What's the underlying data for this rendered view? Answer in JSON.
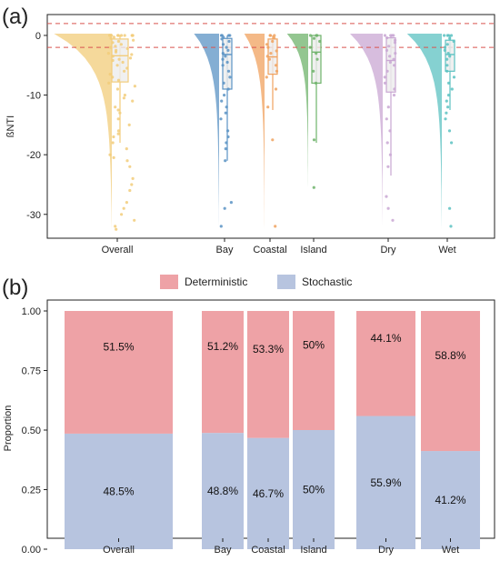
{
  "figure": {
    "panel_a_label": "(a)",
    "panel_b_label": "(b)"
  },
  "colors": {
    "Overall": "#f2cc7a",
    "Bay": "#5b93c4",
    "Coastal": "#f0a25f",
    "Island": "#6fb36b",
    "Dry": "#c9a7d3",
    "Wet": "#5cc2c2",
    "threshold_line": "#d9534f",
    "deterministic": "#eea2a6",
    "stochastic": "#b7c4df"
  },
  "chart_data": [
    {
      "type": "box",
      "subtype": "raincloud (half-violin + box + jittered points)",
      "panel": "(a)",
      "ylabel": "ßNTI",
      "xlabel": "",
      "categories": [
        "Overall",
        "Bay",
        "Coastal",
        "Island",
        "Dry",
        "Wet"
      ],
      "ylim": [
        -34,
        3.5
      ],
      "yticks": [
        0,
        -10,
        -20,
        -30
      ],
      "reference_lines": [
        2,
        -2
      ],
      "grid": false,
      "box_stats": [
        {
          "name": "Overall",
          "whisker_low": -18,
          "q1": -7.8,
          "median": -3.4,
          "q3": -0.6,
          "whisker_high": 0
        },
        {
          "name": "Bay",
          "whisker_low": -21,
          "q1": -9,
          "median": -3.2,
          "q3": -0.5,
          "whisker_high": 0
        },
        {
          "name": "Coastal",
          "whisker_low": -12.5,
          "q1": -6.5,
          "median": -3.6,
          "q3": -0.6,
          "whisker_high": 0
        },
        {
          "name": "Island",
          "whisker_low": -18,
          "q1": -8,
          "median": -2.8,
          "q3": 0,
          "whisker_high": 0
        },
        {
          "name": "Dry",
          "whisker_low": -23.5,
          "q1": -9.5,
          "median": -4.2,
          "q3": -0.4,
          "whisker_high": 0
        },
        {
          "name": "Wet",
          "whisker_low": -12.5,
          "q1": -6,
          "median": -3.2,
          "q3": -0.8,
          "whisker_high": 0
        }
      ],
      "violin_range": [
        {
          "name": "Overall",
          "min": -32.5,
          "max": 0
        },
        {
          "name": "Bay",
          "min": -32,
          "max": 0
        },
        {
          "name": "Coastal",
          "min": -32.5,
          "max": 0
        },
        {
          "name": "Island",
          "min": -25.5,
          "max": 0
        },
        {
          "name": "Dry",
          "min": -32,
          "max": 0
        },
        {
          "name": "Wet",
          "min": -32.5,
          "max": 0
        }
      ],
      "points": {
        "Overall": [
          0,
          0,
          0,
          0,
          0,
          0,
          0,
          0,
          0,
          -0.3,
          -0.5,
          -0.8,
          -1,
          -1.2,
          -1.5,
          -1.8,
          -2,
          -2.2,
          -2.5,
          -2.8,
          -3,
          -3.2,
          -3.5,
          -3.8,
          -4,
          -4.2,
          -4.5,
          -5,
          -5.5,
          -6,
          -6.5,
          -7,
          -7.5,
          -8,
          -8.5,
          -9,
          -10,
          -10.5,
          -11,
          -12,
          -12.5,
          -13,
          -14,
          -15,
          -16,
          -16.5,
          -17,
          -18,
          -19,
          -20,
          -20.5,
          -21,
          -22,
          -24,
          -25,
          -26,
          -28,
          -29,
          -30,
          -31,
          -32,
          -32.5
        ],
        "Bay": [
          0,
          0,
          0,
          0,
          -0.3,
          -0.6,
          -1,
          -1.5,
          -2,
          -2.5,
          -3,
          -3.5,
          -4,
          -4.5,
          -5,
          -6,
          -7,
          -8,
          -9,
          -10,
          -11,
          -12,
          -13,
          -14,
          -16,
          -17,
          -18,
          -19,
          -21,
          -28,
          -29,
          -32
        ],
        "Coastal": [
          0,
          0,
          0,
          -0.4,
          -1,
          -1.5,
          -2,
          -2.6,
          -3,
          -3.5,
          -4,
          -5,
          -6,
          -7,
          -9,
          -12,
          -17.5,
          -32
        ],
        "Island": [
          0,
          0,
          0,
          -0.5,
          -1,
          -2,
          -3,
          -4,
          -6,
          -8,
          -17.5,
          -25.5
        ],
        "Dry": [
          0,
          0,
          0,
          0,
          -0.4,
          -0.8,
          -1.2,
          -1.8,
          -2.5,
          -3,
          -3.5,
          -4,
          -4.5,
          -5,
          -6,
          -7,
          -8,
          -9,
          -10,
          -12,
          -14,
          -16,
          -18,
          -20,
          -22,
          -27,
          -29,
          -31
        ],
        "Wet": [
          0,
          0,
          0,
          0,
          -0.5,
          -1,
          -1.5,
          -2,
          -2.5,
          -3,
          -3.5,
          -4,
          -5,
          -6,
          -7,
          -8,
          -9,
          -10,
          -11,
          -12,
          -13,
          -14,
          -16,
          -18,
          -29,
          -32
        ]
      }
    },
    {
      "type": "bar",
      "subtype": "stacked proportion",
      "panel": "(b)",
      "ylabel": "Proportion",
      "xlabel": "",
      "categories": [
        "Overall",
        "Bay",
        "Coastal",
        "Island",
        "Dry",
        "Wet"
      ],
      "ylim": [
        0,
        1
      ],
      "yticks": [
        "0.00",
        "0.25",
        "0.50",
        "0.75",
        "1.00"
      ],
      "legend_position": "top",
      "grid": false,
      "series": [
        {
          "name": "Stochastic",
          "values": [
            0.485,
            0.488,
            0.467,
            0.5,
            0.559,
            0.412
          ],
          "labels": [
            "48.5%",
            "48.8%",
            "46.7%",
            "50%",
            "55.9%",
            "41.2%"
          ]
        },
        {
          "name": "Deterministic",
          "values": [
            0.515,
            0.512,
            0.533,
            0.5,
            0.441,
            0.588
          ],
          "labels": [
            "51.5%",
            "51.2%",
            "53.3%",
            "50%",
            "44.1%",
            "58.8%"
          ]
        }
      ]
    }
  ]
}
